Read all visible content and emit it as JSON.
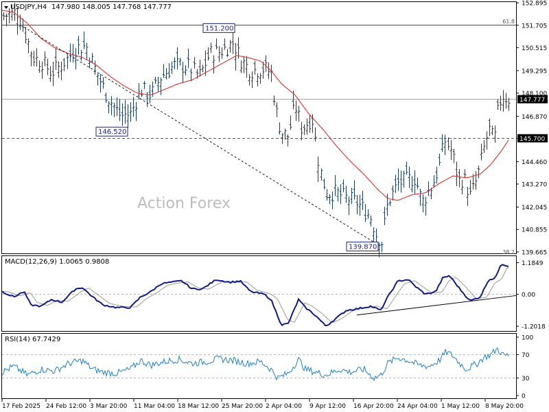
{
  "main_header": {
    "symbol": "USDJPY,H4",
    "ohlc": "147.980 148.005 147.768 147.777"
  },
  "macd_header": "MACD(12,26,9) 1.0065 0.9808",
  "rsi_header": "RSI(14) 67.7429",
  "watermark": "Action Forex",
  "colors": {
    "bars": "#1a3a5a",
    "ma": "#e0302a",
    "macd": "#0d1a8a",
    "signal": "#9a9a9a",
    "rsi": "#1e7fc8",
    "grid_dash": "#777777",
    "tag_bg": "#ffffff",
    "tag_border": "#1a237e"
  },
  "chart_data": [
    {
      "type": "ohlc",
      "panel": "price",
      "y_ticks": [
        "152.895",
        "151.705",
        "150.515",
        "149.295",
        "148.100",
        "146.870",
        "145.700",
        "144.460",
        "143.270",
        "142.045",
        "140.855",
        "139.665"
      ],
      "price_levels": [
        {
          "label": "61.8",
          "value": 151.705,
          "style": "solid"
        },
        {
          "label": "145.700",
          "value": 145.7,
          "style": "dashed",
          "highlight": true
        },
        {
          "label": "147.777",
          "value": 147.777,
          "style": "solid",
          "highlight": true,
          "dark": true
        },
        {
          "label": "38.2",
          "value": 139.6,
          "style": "none"
        }
      ],
      "annotations": [
        {
          "label": "151.200"
        },
        {
          "label": "146.520"
        },
        {
          "label": "139.870"
        }
      ],
      "series": [
        {
          "name": "",
          "kind": "moving_average"
        }
      ],
      "ylim": [
        139.66,
        152.9
      ]
    },
    {
      "type": "line",
      "panel": "macd",
      "y_ticks": [
        "1.1849",
        "0.00",
        "-1.2018"
      ],
      "series": [
        {
          "kind": "macd"
        },
        {
          "kind": "signal"
        }
      ],
      "ylim": [
        -1.25,
        1.25
      ]
    },
    {
      "type": "line",
      "panel": "rsi",
      "y_ticks": [
        "100",
        "70",
        "30",
        "0"
      ],
      "levels": [
        70,
        30
      ],
      "ylim": [
        0,
        100
      ]
    }
  ],
  "x_ticks": [
    "17 Feb 2025",
    "24 Feb 12:00",
    "3 Mar 20:00",
    "11 Mar 04:00",
    "18 Mar 12:00",
    "25 Mar 20:00",
    "2 Apr 04:00",
    "9 Apr 12:00",
    "16 Apr 20:00",
    "24 Apr 04:00",
    "1 May 12:00",
    "8 May 20:00"
  ]
}
